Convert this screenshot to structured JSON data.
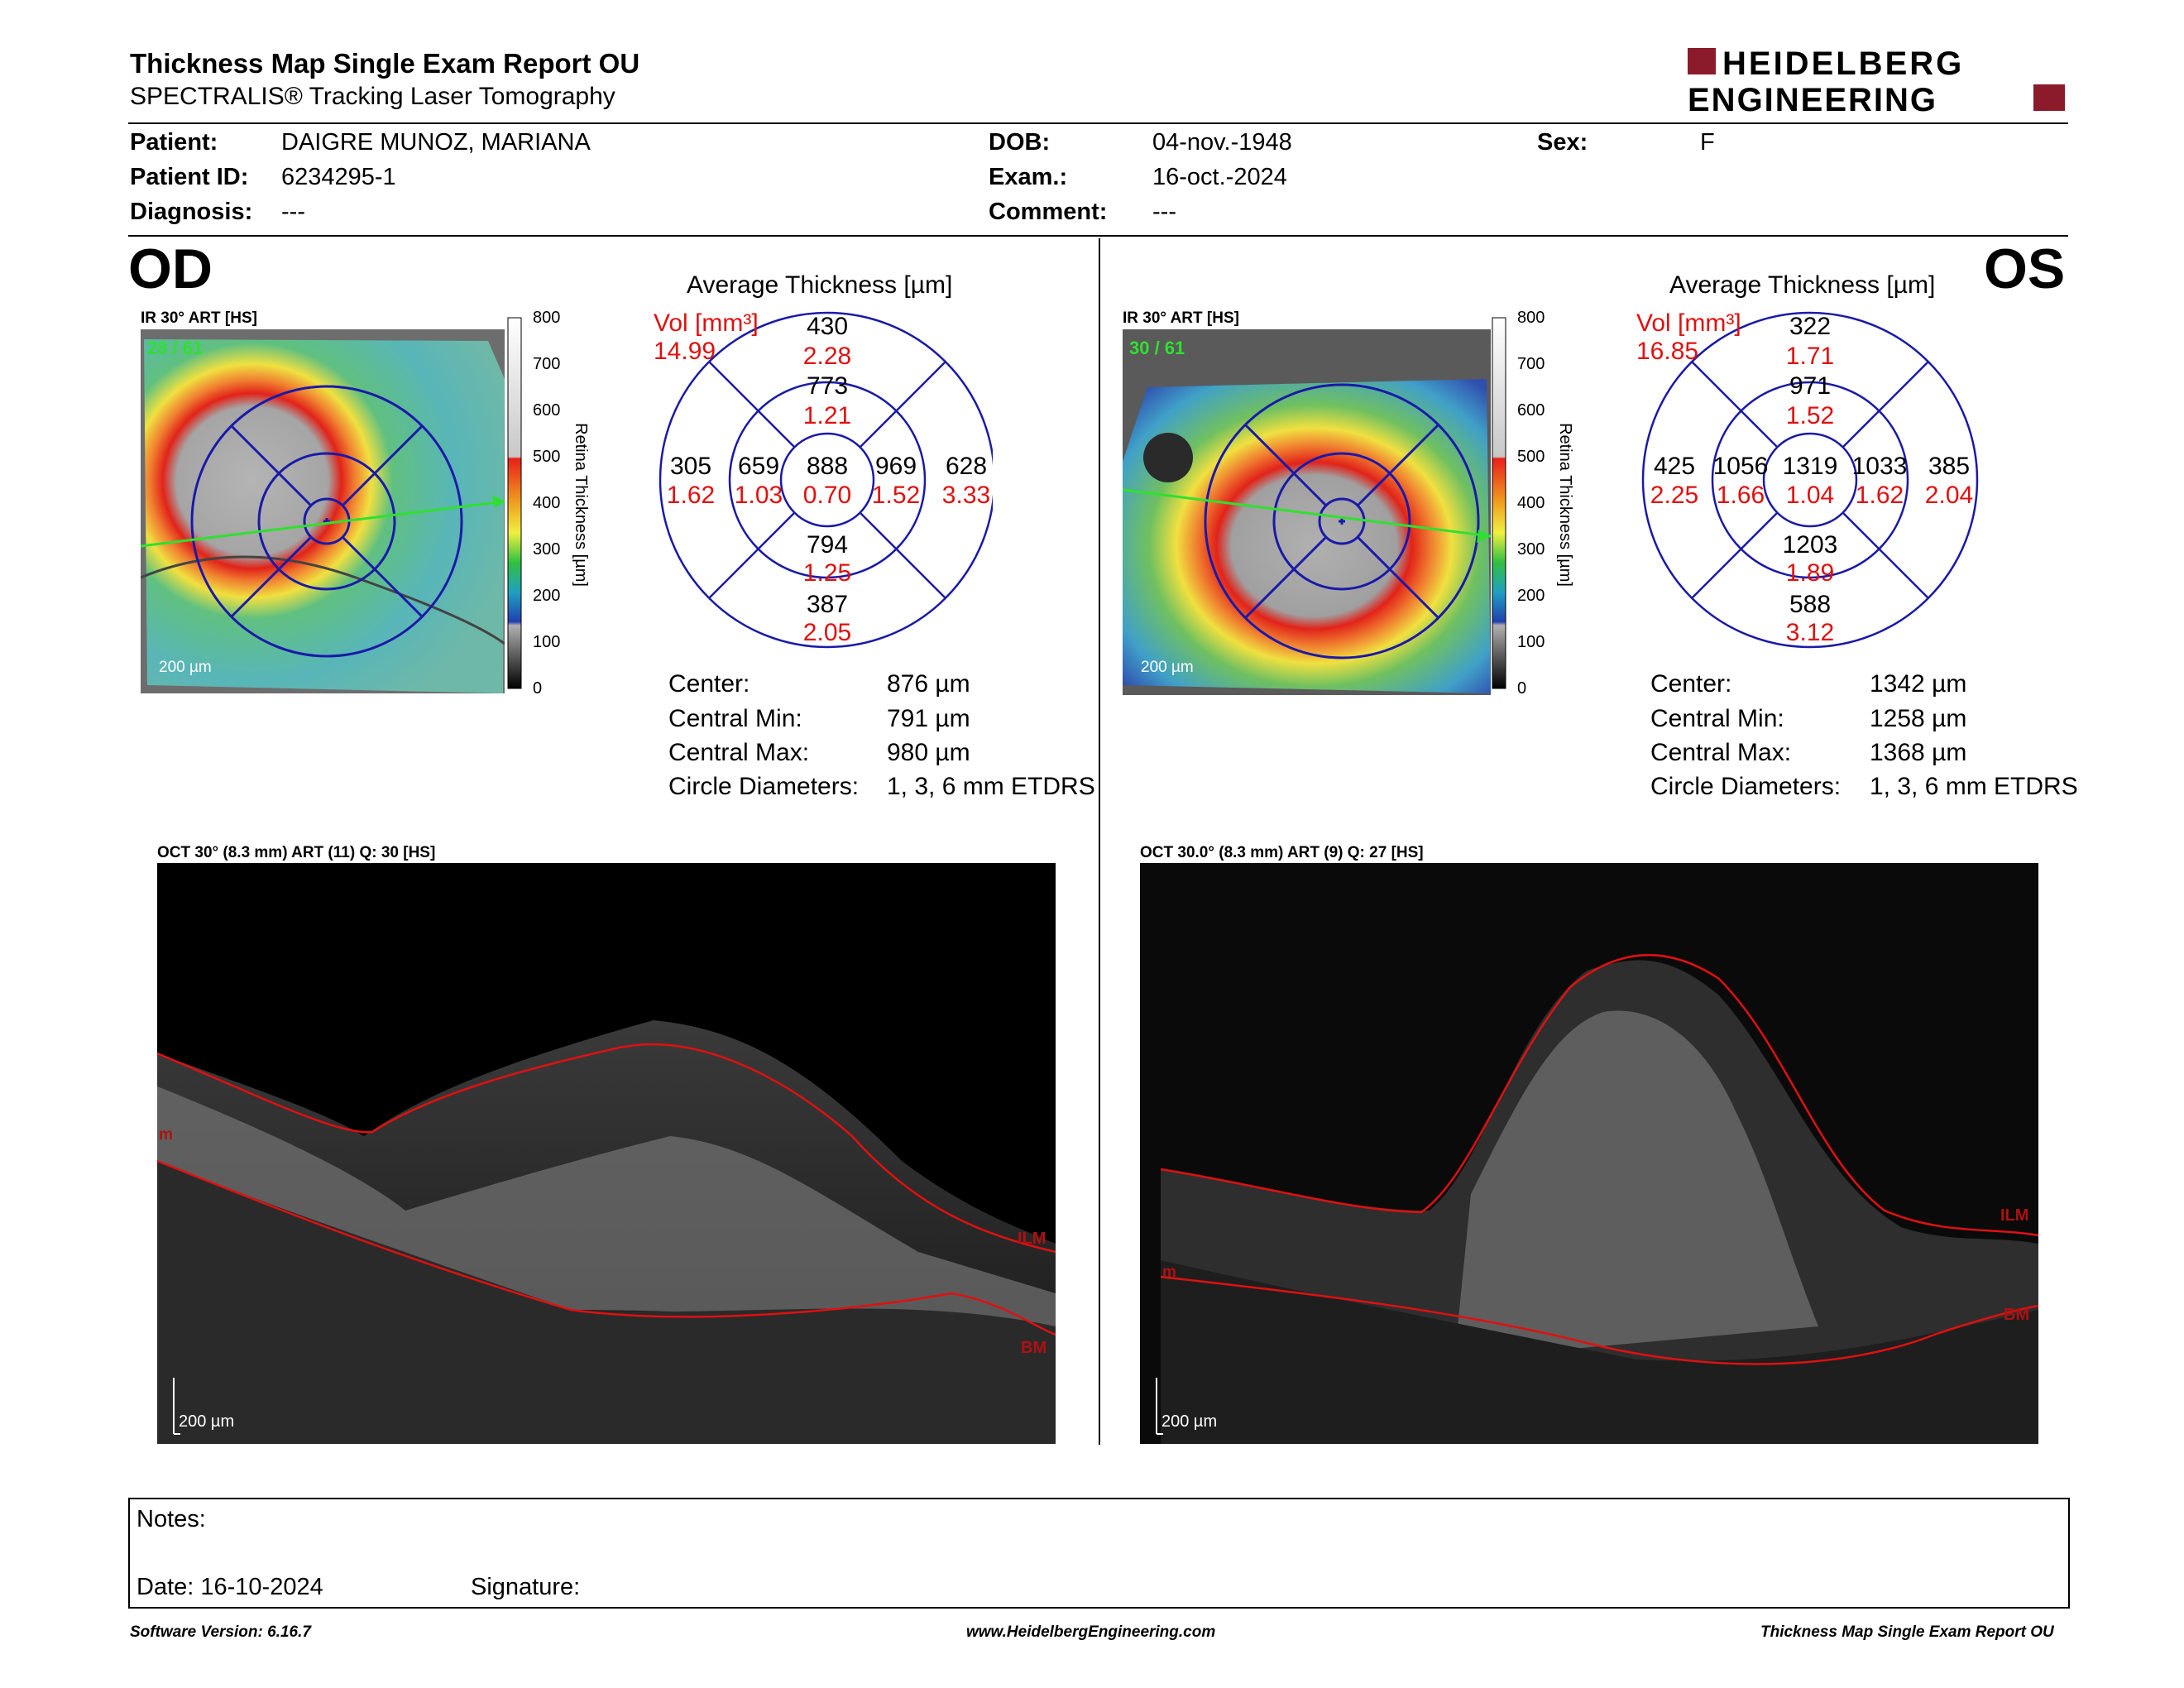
{
  "header": {
    "title": "Thickness Map Single Exam Report OU",
    "subtitle": "SPECTRALIS® Tracking Laser Tomography",
    "logo_line1": "HEIDELBERG",
    "logo_line2": "ENGINEERING",
    "brand_color": "#8b1a2b"
  },
  "patient": {
    "patient_label": "Patient:",
    "patient_value": "DAIGRE MUNOZ, MARIANA",
    "id_label": "Patient ID:",
    "id_value": "6234295-1",
    "diag_label": "Diagnosis:",
    "diag_value": "---",
    "dob_label": "DOB:",
    "dob_value": "04-nov.-1948",
    "exam_label": "Exam.:",
    "exam_value": "16-oct.-2024",
    "comment_label": "Comment:",
    "comment_value": "---",
    "sex_label": "Sex:",
    "sex_value": "F"
  },
  "od": {
    "eye": "OD",
    "ir_label": "IR 30° ART [HS]",
    "ir_count": "28 / 61",
    "scale_ir": "200 µm",
    "colorbar_title": "Retina Thickness [µm]",
    "colorbar_ticks": [
      "800",
      "700",
      "600",
      "500",
      "400",
      "300",
      "200",
      "100",
      "0"
    ],
    "avg_title": "Average Thickness [µm]",
    "vol_label": "Vol [mm³]",
    "vol_value": "14.99",
    "grid": {
      "center_t": "888",
      "center_v": "0.70",
      "inner_sup_t": "773",
      "inner_sup_v": "1.21",
      "inner_inf_t": "794",
      "inner_inf_v": "1.25",
      "inner_left_t": "659",
      "inner_left_v": "1.03",
      "inner_right_t": "969",
      "inner_right_v": "1.52",
      "outer_sup_t": "430",
      "outer_sup_v": "2.28",
      "outer_inf_t": "387",
      "outer_inf_v": "2.05",
      "outer_left_t": "305",
      "outer_left_v": "1.62",
      "outer_right_t": "628",
      "outer_right_v": "3.33"
    },
    "stats": {
      "center_label": "Center:",
      "center_value": "876 µm",
      "min_label": "Central Min:",
      "min_value": "791 µm",
      "max_label": "Central Max:",
      "max_value": "980 µm",
      "diam_label": "Circle Diameters:",
      "diam_value": "1, 3, 6 mm ETDRS"
    },
    "oct_label": "OCT 30° (8.3 mm) ART (11) Q: 30 [HS]",
    "oct_scale": "200 µm",
    "ilm": "ILM",
    "bm": "BM",
    "ilm_edge": "m"
  },
  "os": {
    "eye": "OS",
    "ir_label": "IR 30° ART [HS]",
    "ir_count": "30 / 61",
    "scale_ir": "200 µm",
    "colorbar_title": "Retina Thickness [µm]",
    "colorbar_ticks": [
      "800",
      "700",
      "600",
      "500",
      "400",
      "300",
      "200",
      "100",
      "0"
    ],
    "avg_title": "Average Thickness [µm]",
    "vol_label": "Vol [mm³]",
    "vol_value": "16.85",
    "grid": {
      "center_t": "1319",
      "center_v": "1.04",
      "inner_sup_t": "971",
      "inner_sup_v": "1.52",
      "inner_inf_t": "1203",
      "inner_inf_v": "1.89",
      "inner_left_t": "1056",
      "inner_left_v": "1.66",
      "inner_right_t": "1033",
      "inner_right_v": "1.62",
      "outer_sup_t": "322",
      "outer_sup_v": "1.71",
      "outer_inf_t": "588",
      "outer_inf_v": "3.12",
      "outer_left_t": "425",
      "outer_left_v": "2.25",
      "outer_right_t": "385",
      "outer_right_v": "2.04"
    },
    "stats": {
      "center_label": "Center:",
      "center_value": "1342 µm",
      "min_label": "Central Min:",
      "min_value": "1258 µm",
      "max_label": "Central Max:",
      "max_value": "1368 µm",
      "diam_label": "Circle Diameters:",
      "diam_value": "1, 3, 6 mm ETDRS"
    },
    "oct_label": "OCT 30.0° (8.3 mm) ART (9) Q: 27 [HS]",
    "oct_scale": "200 µm",
    "ilm": "ILM",
    "bm": "BM",
    "ilm_edge": "m"
  },
  "notes": {
    "notes_label": "Notes:",
    "date_label": "Date: 16-10-2024",
    "signature_label": "Signature:"
  },
  "footer": {
    "left": "Software Version: 6.16.7",
    "center": "www.HeidelbergEngineering.com",
    "right": "Thickness Map Single Exam Report OU"
  }
}
